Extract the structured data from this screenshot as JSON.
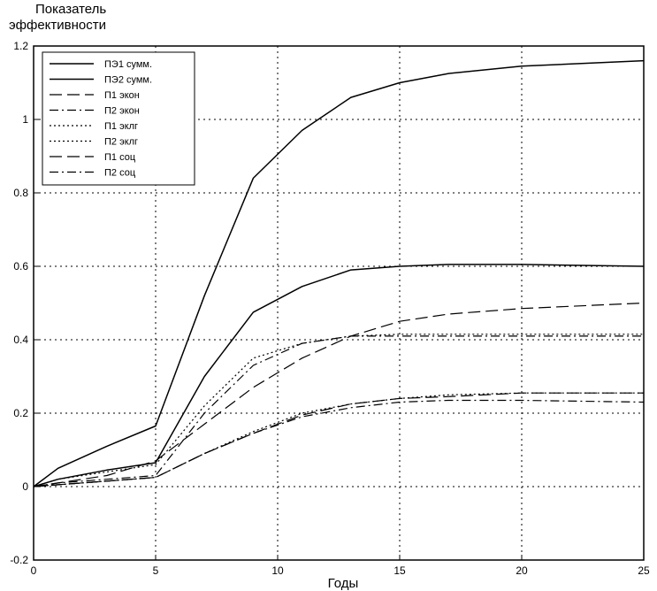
{
  "chart_data": {
    "type": "line",
    "title": "",
    "xlabel": "Годы",
    "ylabel": "Показатель эффективности",
    "ylabel_lines": [
      "Показатель",
      "эффективности"
    ],
    "xlim": [
      0,
      25
    ],
    "ylim": [
      -0.2,
      1.2
    ],
    "x_ticks": [
      0,
      5,
      10,
      15,
      20,
      25
    ],
    "y_ticks": [
      -0.2,
      0,
      0.2,
      0.4,
      0.6,
      0.8,
      1.0,
      1.2
    ],
    "x_tick_labels": [
      "0",
      "5",
      "10",
      "15",
      "20",
      "25"
    ],
    "y_tick_labels": [
      "-0.2",
      "0",
      "0.2",
      "0.4",
      "0.6",
      "0.8",
      "1",
      "1.2"
    ],
    "grid": true,
    "legend_position": "top-left",
    "series": [
      {
        "name": "ПЭ1 сумм.",
        "style": "solid",
        "x": [
          0,
          1,
          3,
          5,
          7,
          9,
          11,
          13,
          15,
          17,
          20,
          25
        ],
        "y": [
          0,
          0.05,
          0.11,
          0.165,
          0.52,
          0.84,
          0.97,
          1.06,
          1.1,
          1.125,
          1.145,
          1.16
        ]
      },
      {
        "name": "ПЭ2 сумм.",
        "style": "solid",
        "x": [
          0,
          1,
          3,
          5,
          7,
          9,
          11,
          13,
          15,
          17,
          20,
          25
        ],
        "y": [
          0,
          0.02,
          0.045,
          0.065,
          0.3,
          0.475,
          0.545,
          0.59,
          0.6,
          0.605,
          0.605,
          0.6
        ]
      },
      {
        "name": "П1 экон",
        "style": "longdash",
        "x": [
          0,
          1,
          3,
          5,
          7,
          9,
          11,
          13,
          15,
          17,
          20,
          25
        ],
        "y": [
          0,
          0.01,
          0.03,
          0.07,
          0.17,
          0.27,
          0.35,
          0.41,
          0.45,
          0.47,
          0.485,
          0.5
        ]
      },
      {
        "name": "П2 экон",
        "style": "dashdot",
        "x": [
          0,
          1,
          3,
          5,
          7,
          9,
          11,
          13,
          15,
          17,
          20,
          25
        ],
        "y": [
          0,
          0.01,
          0.02,
          0.03,
          0.2,
          0.33,
          0.39,
          0.41,
          0.41,
          0.41,
          0.41,
          0.41
        ]
      },
      {
        "name": "П1 эклг",
        "style": "dotted",
        "x": [
          0,
          1,
          3,
          5,
          7,
          9,
          11,
          13,
          15,
          17,
          20,
          25
        ],
        "y": [
          0,
          0.02,
          0.04,
          0.06,
          0.22,
          0.35,
          0.39,
          0.41,
          0.415,
          0.415,
          0.415,
          0.415
        ]
      },
      {
        "name": "П2 эклг",
        "style": "dotted",
        "x": [
          0,
          1,
          3,
          5,
          7,
          9,
          11,
          13,
          15,
          17,
          20,
          25
        ],
        "y": [
          0,
          0.005,
          0.015,
          0.025,
          0.09,
          0.15,
          0.2,
          0.225,
          0.24,
          0.25,
          0.255,
          0.255
        ]
      },
      {
        "name": "П1 соц",
        "style": "longdash",
        "x": [
          0,
          1,
          3,
          5,
          7,
          9,
          11,
          13,
          15,
          17,
          20,
          25
        ],
        "y": [
          0,
          0.005,
          0.015,
          0.025,
          0.09,
          0.145,
          0.195,
          0.225,
          0.24,
          0.245,
          0.255,
          0.255
        ]
      },
      {
        "name": "П2 соц",
        "style": "dashdot",
        "x": [
          0,
          1,
          3,
          5,
          7,
          9,
          11,
          13,
          15,
          17,
          20,
          25
        ],
        "y": [
          0,
          0.005,
          0.015,
          0.025,
          0.09,
          0.145,
          0.19,
          0.215,
          0.23,
          0.235,
          0.235,
          0.23
        ]
      }
    ]
  }
}
